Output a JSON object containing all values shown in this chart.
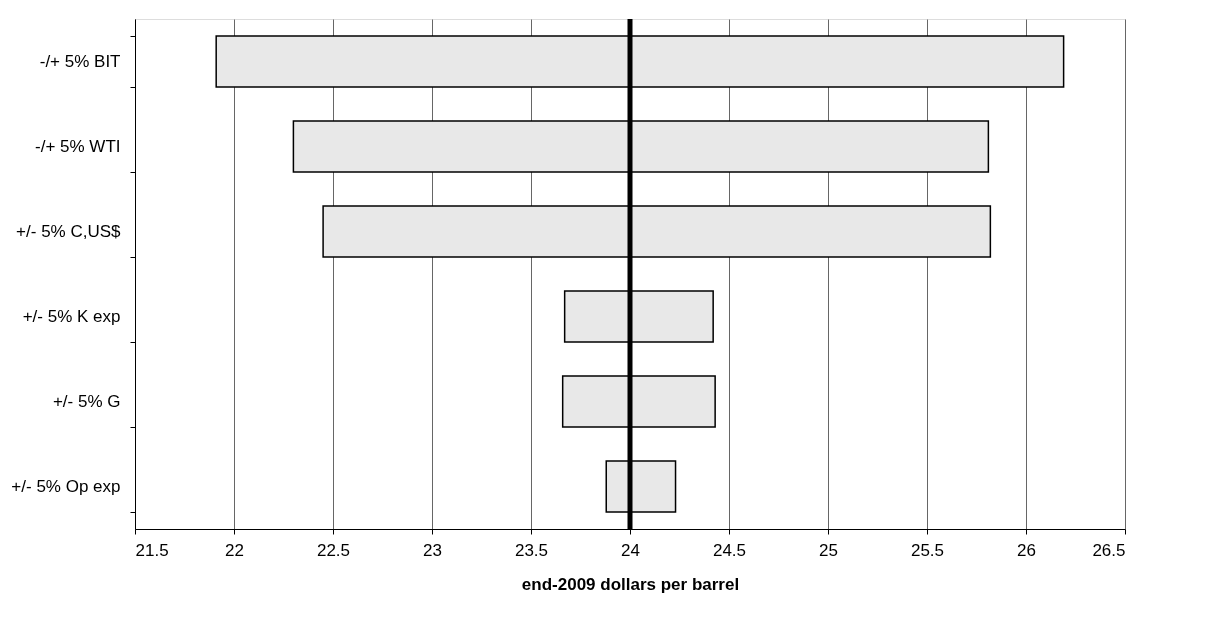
{
  "chart_data": {
    "type": "bar",
    "orientation": "horizontal",
    "xlabel": "end-2009 dollars per barrel",
    "categories": [
      "-/+ 5% BIT",
      "-/+ 5% WTI",
      "+/- 5% C,US$",
      "+/- 5% K exp",
      "+/- 5% G",
      "+/- 5% Op exp"
    ],
    "base": [
      21.91,
      22.3,
      22.45,
      23.67,
      23.66,
      23.88
    ],
    "values": [
      4.28,
      3.51,
      3.37,
      0.75,
      0.77,
      0.35
    ],
    "color": "#e8e8e8",
    "xlim": [
      21.5,
      26.5
    ],
    "xticks": [
      21.5,
      22,
      22.5,
      23,
      23.5,
      24,
      24.5,
      25,
      25.5,
      26,
      26.5
    ],
    "grid": "x",
    "ref_lines": [
      {
        "axis": "x",
        "value": 24,
        "color": "#000000"
      }
    ]
  }
}
